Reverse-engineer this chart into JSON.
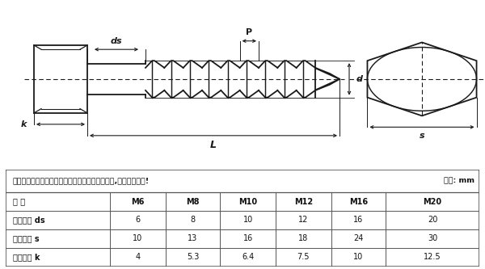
{
  "bg_color": "#ffffff",
  "line_color": "#1a1a1a",
  "table_header_note": "以下为单批测量数据，可能稍有误差，以实际为准,介意者请慎拍!",
  "table_unit": "单位: mm",
  "table_cols": [
    "规 格",
    "M6",
    "M8",
    "M10",
    "M12",
    "M16",
    "M20"
  ],
  "table_rows": [
    [
      "螺杆直径 ds",
      "6",
      "8",
      "10",
      "12",
      "16",
      "20"
    ],
    [
      "头部对边 s",
      "10",
      "13",
      "16",
      "18",
      "24",
      "30"
    ],
    [
      "头部厚度 k",
      "4",
      "5.3",
      "6.4",
      "7.5",
      "10",
      "12.5"
    ]
  ]
}
